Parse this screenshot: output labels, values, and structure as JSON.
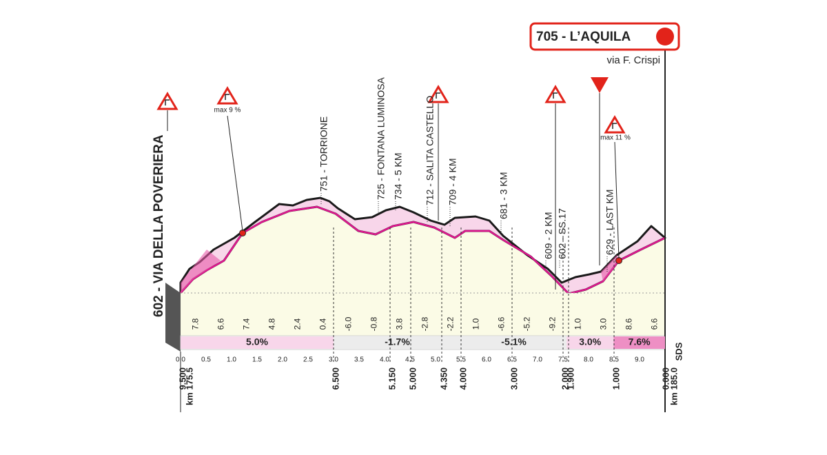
{
  "finish": {
    "label": "705 - L’AQUILA",
    "street": "via F. Crispi"
  },
  "start": {
    "label": "602 - VIA DELLA POVERIERA"
  },
  "max_gradients": [
    "max 9 %",
    "max 11 %"
  ],
  "waypoints": [
    "751 - TORRIONE",
    "725 - FONTANA LUMINOSA",
    "734 - 5 KM",
    "712 - SALITA CASTELLO",
    "709 - 4 KM",
    "681 - 3 KM",
    "609 - 2 KM",
    "602 - SS.17",
    "629 - LAST KM"
  ],
  "gradients": [
    "7.8",
    "6.6",
    "7.4",
    "4.8",
    "2.4",
    "0.4",
    "-6.0",
    "-0.8",
    "3.8",
    "-2.8",
    "-2.2",
    "1.0",
    "-6.6",
    "-5.2",
    "-9.2",
    "1.0",
    "3.0",
    "8.6",
    "6.6"
  ],
  "sectors": [
    "5.0%",
    "-1.7%",
    "-5.1%",
    "3.0%",
    "7.6%"
  ],
  "km_axis": [
    "0.0",
    "0.5",
    "1.0",
    "1.5",
    "2.0",
    "2.5",
    "3.0",
    "3.5",
    "4.0",
    "4.5",
    "5.0",
    "5.5",
    "6.0",
    "6.5",
    "7.0",
    "7.5",
    "8.0",
    "8.5",
    "9.0"
  ],
  "distances": [
    "9.500",
    "km 175.5",
    "6.500",
    "5.150",
    "5.000",
    "4.350",
    "4.000",
    "3.000",
    "2.000",
    "1.900",
    "1.000",
    "0.000",
    "km 185.0"
  ],
  "logo": "SDS"
}
